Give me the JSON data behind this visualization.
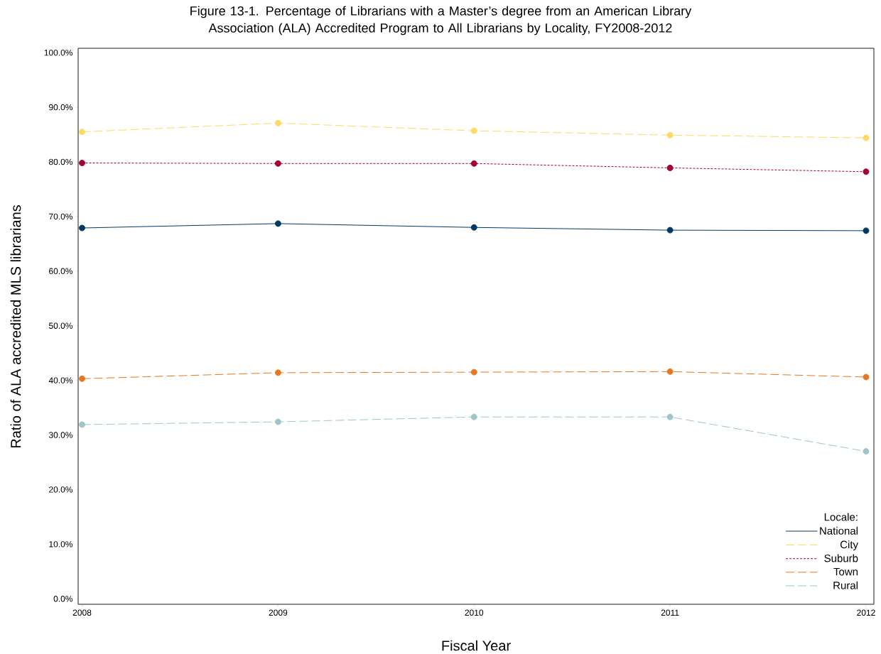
{
  "chart_data": {
    "type": "line",
    "title": "Figure 13-1. Percentage of Librarians  with a Master’s degree from an American Library Association (ALA) Accredited Program to All Librarians by Locality, FY2008-2012",
    "xlabel": "Fiscal Year",
    "ylabel": "Ratio of ALA accredited MLS librarians",
    "legend_title": "Locale:",
    "x": [
      2008,
      2009,
      2010,
      2011,
      2012
    ],
    "xlim": [
      2007.98,
      2012.04
    ],
    "xticks": [
      2008,
      2009,
      2010,
      2011,
      2012
    ],
    "ylim": [
      -1,
      100.8
    ],
    "yticks": [
      {
        "value": 0,
        "label": "0.0%"
      },
      {
        "value": 10,
        "label": "10.0%"
      },
      {
        "value": 20,
        "label": "20.0%"
      },
      {
        "value": 30,
        "label": "30.0%"
      },
      {
        "value": 40,
        "label": "40.0%"
      },
      {
        "value": 50,
        "label": "50.0%"
      },
      {
        "value": 60,
        "label": "60.0%"
      },
      {
        "value": 70,
        "label": "70.0%"
      },
      {
        "value": 80,
        "label": "80.0%"
      },
      {
        "value": 90,
        "label": "90.0%"
      },
      {
        "value": 100,
        "label": "100.0%"
      }
    ],
    "marker": "circle",
    "legend": "bottom right",
    "grid": false,
    "series": [
      {
        "name": "National",
        "color": "#003a63",
        "line_style": "solid",
        "values": [
          67.9,
          68.7,
          68.0,
          67.5,
          67.4
        ]
      },
      {
        "name": "City",
        "color": "#ffd966",
        "line_style": "dashed",
        "values": [
          85.5,
          87.1,
          85.7,
          84.9,
          84.4
        ]
      },
      {
        "name": "Suburb",
        "color": "#a50034",
        "line_style": "dotted",
        "values": [
          79.8,
          79.7,
          79.7,
          78.9,
          78.2
        ]
      },
      {
        "name": "Town",
        "color": "#e87722",
        "line_style": "dashed",
        "values": [
          40.3,
          41.4,
          41.5,
          41.6,
          40.6
        ]
      },
      {
        "name": "Rural",
        "color": "#9fc5c8",
        "line_style": "dashed",
        "values": [
          31.9,
          32.4,
          33.3,
          33.3,
          27.0
        ]
      }
    ]
  }
}
